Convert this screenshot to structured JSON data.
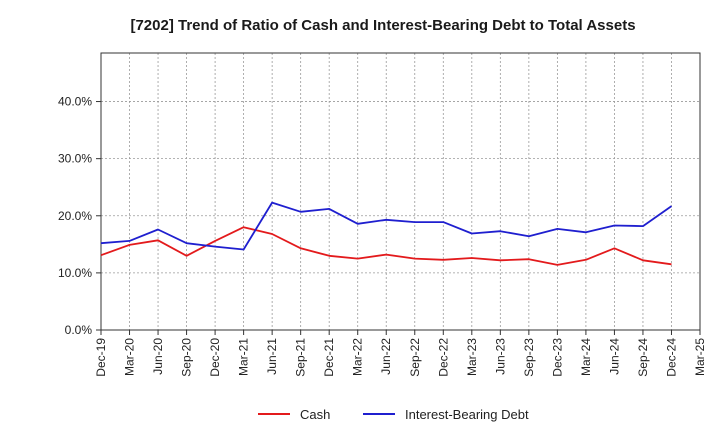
{
  "chart_data": {
    "type": "line",
    "title": "[7202]  Trend of Ratio of Cash and Interest-Bearing Debt to Total Assets",
    "xlabel": "",
    "ylabel": "",
    "x": [
      "Dec-19",
      "Mar-20",
      "Jun-20",
      "Sep-20",
      "Dec-20",
      "Mar-21",
      "Jun-21",
      "Sep-21",
      "Dec-21",
      "Mar-22",
      "Jun-22",
      "Sep-22",
      "Dec-22",
      "Mar-23",
      "Jun-23",
      "Sep-23",
      "Dec-23",
      "Mar-24",
      "Jun-24",
      "Sep-24",
      "Dec-24",
      "Mar-25"
    ],
    "y_ticks": [
      "0.0%",
      "10.0%",
      "20.0%",
      "30.0%",
      "40.0%"
    ],
    "y_tick_values": [
      0,
      10,
      20,
      30,
      40
    ],
    "ylim": [
      0,
      48.5
    ],
    "grid": true,
    "legend_position": "bottom",
    "series": [
      {
        "name": "Cash",
        "color": "#e31a1c",
        "values": [
          13.1,
          14.9,
          15.7,
          13.0,
          15.6,
          18.0,
          16.8,
          14.3,
          13.0,
          12.5,
          13.2,
          12.5,
          12.3,
          12.6,
          12.2,
          12.4,
          11.4,
          12.3,
          14.3,
          12.2,
          11.5,
          null
        ]
      },
      {
        "name": "Interest-Bearing Debt",
        "color": "#1f1fcf",
        "values": [
          15.2,
          15.6,
          17.6,
          15.2,
          14.6,
          14.1,
          22.3,
          20.7,
          21.2,
          18.6,
          19.3,
          18.9,
          18.9,
          16.9,
          17.3,
          16.4,
          17.7,
          17.1,
          18.3,
          18.2,
          21.7,
          null
        ]
      }
    ]
  }
}
